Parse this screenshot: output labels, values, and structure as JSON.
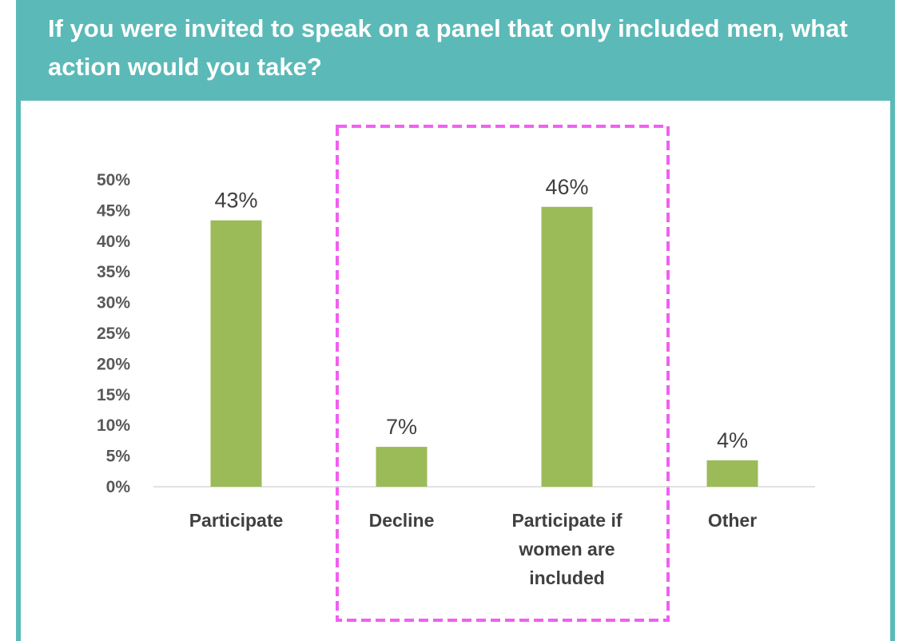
{
  "chart_data": {
    "type": "bar",
    "title": "If you were invited to speak on a panel that only included men, what action would you take?",
    "categories": [
      "Participate",
      "Decline",
      "Participate if women are included",
      "Other"
    ],
    "values": [
      43.4,
      6.5,
      45.6,
      4.3
    ],
    "value_labels": [
      "43%",
      "7%",
      "46%",
      "4%"
    ],
    "color": "#9bbb59",
    "ylim": [
      0,
      50
    ],
    "yticks": [
      {
        "value": 0,
        "label": "0%"
      },
      {
        "value": 5,
        "label": "5%"
      },
      {
        "value": 10,
        "label": "10%"
      },
      {
        "value": 15,
        "label": "15%"
      },
      {
        "value": 20,
        "label": "20%"
      },
      {
        "value": 25,
        "label": "25%"
      },
      {
        "value": 30,
        "label": "30%"
      },
      {
        "value": 35,
        "label": "35%"
      },
      {
        "value": 40,
        "label": "40%"
      },
      {
        "value": 45,
        "label": "45%"
      },
      {
        "value": 50,
        "label": "50%"
      }
    ],
    "grid": false
  }
}
